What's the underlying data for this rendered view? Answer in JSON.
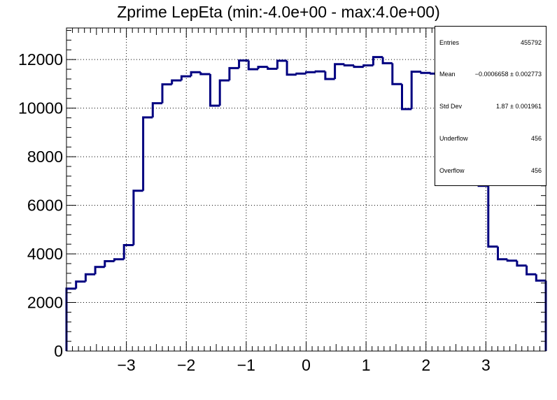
{
  "chart_data": {
    "type": "bar",
    "style": "step-histogram",
    "title": "Zprime LepEta (min:-4.0e+00 - max:4.0e+00)",
    "xlabel": "",
    "ylabel": "",
    "xlim": [
      -4.0,
      4.0
    ],
    "ylim": [
      0,
      13300
    ],
    "bin_width": 0.16,
    "x_ticks": [
      -3,
      -2,
      -1,
      0,
      1,
      2,
      3
    ],
    "x_tick_labels": [
      "−3",
      "−2",
      "−1",
      "0",
      "1",
      "2",
      "3"
    ],
    "y_ticks": [
      0,
      2000,
      4000,
      6000,
      8000,
      10000,
      12000
    ],
    "y_tick_labels": [
      "0",
      "2000",
      "4000",
      "6000",
      "8000",
      "10000",
      "12000"
    ],
    "grid": true,
    "line_color": "#000080",
    "values": [
      2570,
      2860,
      3160,
      3460,
      3700,
      3780,
      4360,
      6600,
      9620,
      10200,
      10980,
      11140,
      11310,
      11480,
      11400,
      10100,
      11140,
      11650,
      11960,
      11600,
      11700,
      11620,
      11950,
      11380,
      11420,
      11480,
      11510,
      11200,
      11810,
      11760,
      11700,
      11760,
      12100,
      11850,
      10990,
      9960,
      11500,
      11450,
      11420,
      11100,
      9700,
      9000,
      8000,
      6800,
      4300,
      3780,
      3720,
      3520,
      3160,
      2900
    ]
  },
  "stats_box": {
    "entries_label": "Entries",
    "entries_value": "455792",
    "mean_label": "Mean",
    "mean_value": "−0.0006658 ± 0.002773",
    "std_label": "Std Dev",
    "std_value": "1.87 ± 0.001961",
    "underflow_label": "Underflow",
    "underflow_value": "456",
    "overflow_label": "Overflow",
    "overflow_value": "456"
  }
}
